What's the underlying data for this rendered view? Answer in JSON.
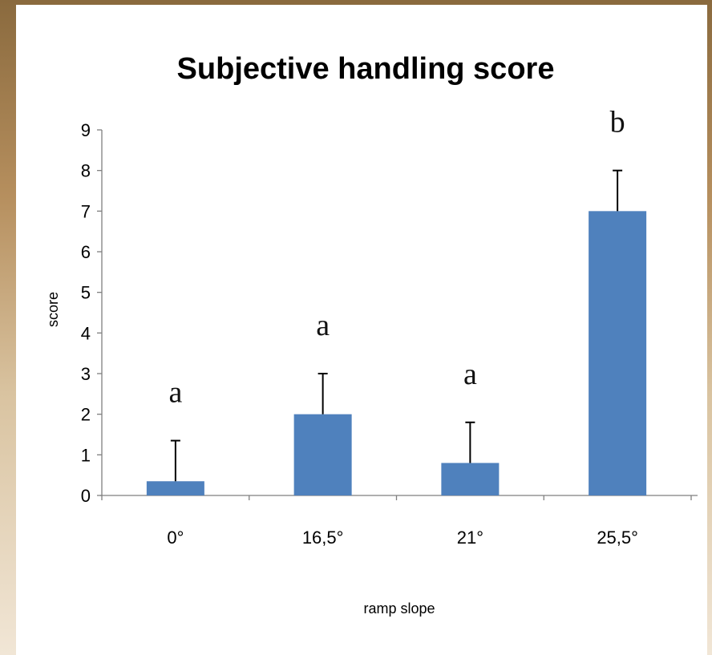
{
  "chart_data": {
    "type": "bar",
    "title": "Subjective handling score",
    "xlabel": "ramp slope",
    "ylabel": "score",
    "categories": [
      "0°",
      "16,5°",
      "21°",
      "25,5°"
    ],
    "values": [
      0.35,
      2.0,
      0.8,
      7.0
    ],
    "error_upper": [
      1.0,
      1.0,
      1.0,
      1.0
    ],
    "significance_letters": [
      "a",
      "a",
      "a",
      "b"
    ],
    "ylim": [
      0,
      9
    ],
    "yticks": [
      "0",
      "1",
      "2",
      "3",
      "4",
      "5",
      "6",
      "7",
      "8",
      "9"
    ],
    "grid": false,
    "legend": "none",
    "bar_color": "#4f81bd"
  }
}
